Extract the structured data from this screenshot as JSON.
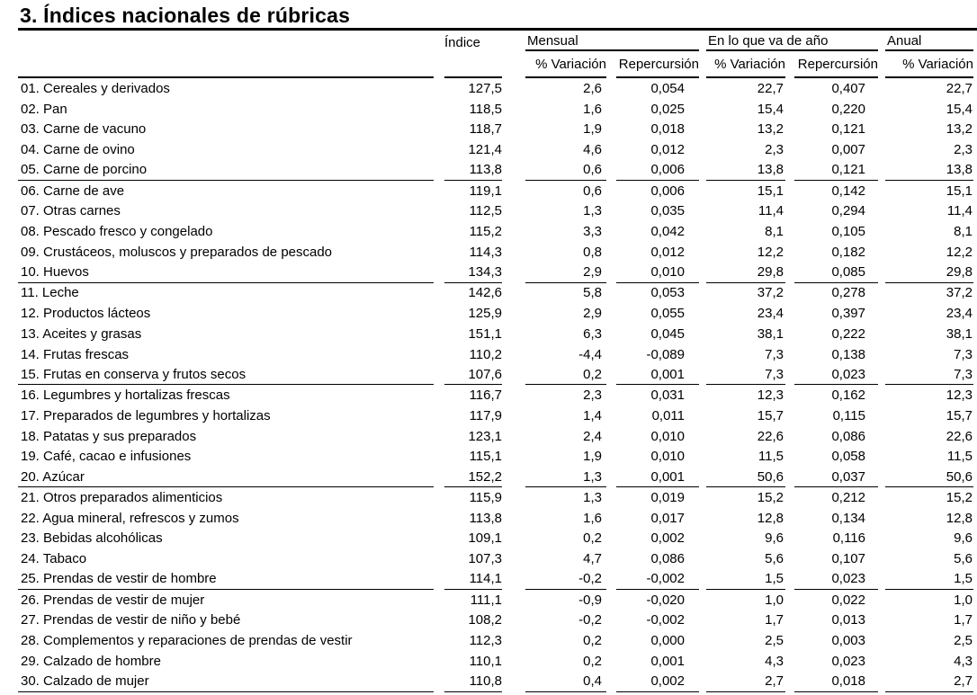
{
  "title": "3. Índices nacionales de rúbricas",
  "table": {
    "col_groups": {
      "indice": "Índice",
      "mensual": "Mensual",
      "ytd": "En lo que va de año",
      "anual": "Anual"
    },
    "sub_headers": {
      "pct_variacion": "% Variación",
      "repercusion": "Repercursión"
    },
    "rows": [
      [
        "01. Cereales y derivados",
        "127,5",
        "2,6",
        "0,054",
        "22,7",
        "0,407",
        "22,7"
      ],
      [
        "02. Pan",
        "118,5",
        "1,6",
        "0,025",
        "15,4",
        "0,220",
        "15,4"
      ],
      [
        "03. Carne de vacuno",
        "118,7",
        "1,9",
        "0,018",
        "13,2",
        "0,121",
        "13,2"
      ],
      [
        "04. Carne de ovino",
        "121,4",
        "4,6",
        "0,012",
        "2,3",
        "0,007",
        "2,3"
      ],
      [
        "05. Carne de porcino",
        "113,8",
        "0,6",
        "0,006",
        "13,8",
        "0,121",
        "13,8"
      ],
      [
        "06. Carne de ave",
        "119,1",
        "0,6",
        "0,006",
        "15,1",
        "0,142",
        "15,1"
      ],
      [
        "07. Otras carnes",
        "112,5",
        "1,3",
        "0,035",
        "11,4",
        "0,294",
        "11,4"
      ],
      [
        "08. Pescado fresco y congelado",
        "115,2",
        "3,3",
        "0,042",
        "8,1",
        "0,105",
        "8,1"
      ],
      [
        "09. Crustáceos, moluscos y preparados de pescado",
        "114,3",
        "0,8",
        "0,012",
        "12,2",
        "0,182",
        "12,2"
      ],
      [
        "10. Huevos",
        "134,3",
        "2,9",
        "0,010",
        "29,8",
        "0,085",
        "29,8"
      ],
      [
        "11. Leche",
        "142,6",
        "5,8",
        "0,053",
        "37,2",
        "0,278",
        "37,2"
      ],
      [
        "12. Productos lácteos",
        "125,9",
        "2,9",
        "0,055",
        "23,4",
        "0,397",
        "23,4"
      ],
      [
        "13. Aceites y grasas",
        "151,1",
        "6,3",
        "0,045",
        "38,1",
        "0,222",
        "38,1"
      ],
      [
        "14. Frutas frescas",
        "110,2",
        "-4,4",
        "-0,089",
        "7,3",
        "0,138",
        "7,3"
      ],
      [
        "15. Frutas en conserva y frutos secos",
        "107,6",
        "0,2",
        "0,001",
        "7,3",
        "0,023",
        "7,3"
      ],
      [
        "16. Legumbres y hortalizas frescas",
        "116,7",
        "2,3",
        "0,031",
        "12,3",
        "0,162",
        "12,3"
      ],
      [
        "17. Preparados de legumbres y hortalizas",
        "117,9",
        "1,4",
        "0,011",
        "15,7",
        "0,115",
        "15,7"
      ],
      [
        "18. Patatas y sus preparados",
        "123,1",
        "2,4",
        "0,010",
        "22,6",
        "0,086",
        "22,6"
      ],
      [
        "19. Café, cacao e infusiones",
        "115,1",
        "1,9",
        "0,010",
        "11,5",
        "0,058",
        "11,5"
      ],
      [
        "20. Azúcar",
        "152,2",
        "1,3",
        "0,001",
        "50,6",
        "0,037",
        "50,6"
      ],
      [
        "21. Otros preparados alimenticios",
        "115,9",
        "1,3",
        "0,019",
        "15,2",
        "0,212",
        "15,2"
      ],
      [
        "22. Agua mineral, refrescos y zumos",
        "113,8",
        "1,6",
        "0,017",
        "12,8",
        "0,134",
        "12,8"
      ],
      [
        "23. Bebidas alcohólicas",
        "109,1",
        "0,2",
        "0,002",
        "9,6",
        "0,116",
        "9,6"
      ],
      [
        "24. Tabaco",
        "107,3",
        "4,7",
        "0,086",
        "5,6",
        "0,107",
        "5,6"
      ],
      [
        "25. Prendas de vestir de hombre",
        "114,1",
        "-0,2",
        "-0,002",
        "1,5",
        "0,023",
        "1,5"
      ],
      [
        "26. Prendas de vestir de mujer",
        "111,1",
        "-0,9",
        "-0,020",
        "1,0",
        "0,022",
        "1,0"
      ],
      [
        "27. Prendas de vestir de niño y bebé",
        "108,2",
        "-0,2",
        "-0,002",
        "1,7",
        "0,013",
        "1,7"
      ],
      [
        "28. Complementos y reparaciones de prendas de vestir",
        "112,3",
        "0,2",
        "0,000",
        "2,5",
        "0,003",
        "2,5"
      ],
      [
        "29. Calzado de hombre",
        "110,1",
        "0,2",
        "0,001",
        "4,3",
        "0,023",
        "4,3"
      ],
      [
        "30. Calzado de mujer",
        "110,8",
        "0,4",
        "0,002",
        "2,7",
        "0,018",
        "2,7"
      ]
    ]
  }
}
